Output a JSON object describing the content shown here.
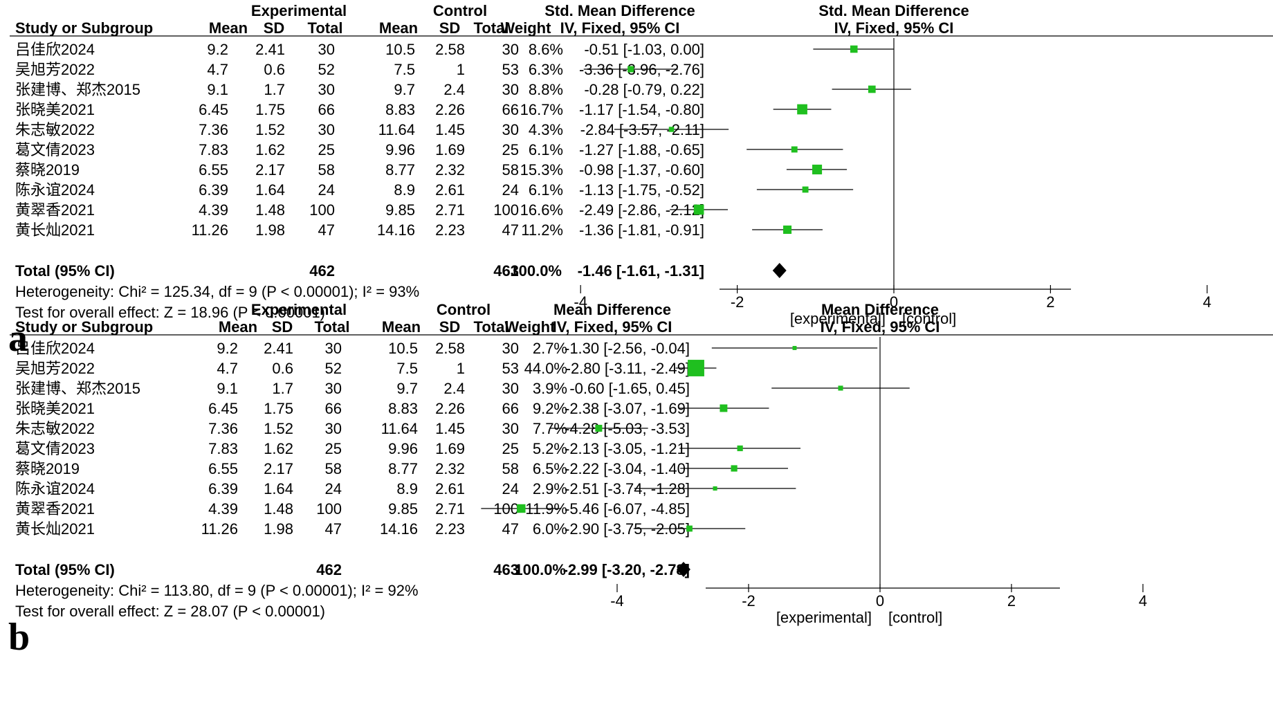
{
  "chart_data": [
    {
      "type": "forest",
      "panel_label": "a",
      "headers": {
        "group_experimental": "Experimental",
        "group_control": "Control",
        "effect_col_top": "Std. Mean Difference",
        "effect_col_bottom": "IV, Fixed, 95% CI",
        "plot_title_top": "Std. Mean Difference",
        "plot_title_bottom": "IV, Fixed, 95% CI",
        "study": "Study or Subgroup",
        "mean_e": "Mean",
        "sd_e": "SD",
        "total_e": "Total",
        "mean_c": "Mean",
        "sd_c": "SD",
        "total_c": "Total",
        "weight": "Weight"
      },
      "studies": [
        {
          "name": "吕佳欣2024",
          "mean_e": "9.2",
          "sd_e": "2.41",
          "n_e": "30",
          "mean_c": "10.5",
          "sd_c": "2.58",
          "n_c": "30",
          "weight": "8.6%",
          "ci_text": "-0.51 [-1.03, 0.00]",
          "est": -0.51,
          "lo": -1.03,
          "hi": 0.0,
          "w": 8.6
        },
        {
          "name": "吴旭芳2022",
          "mean_e": "4.7",
          "sd_e": "0.6",
          "n_e": "52",
          "mean_c": "7.5",
          "sd_c": "1",
          "n_c": "53",
          "weight": "6.3%",
          "ci_text": "-3.36 [-3.96, -2.76]",
          "est": -3.36,
          "lo": -3.96,
          "hi": -2.76,
          "w": 6.3
        },
        {
          "name": "张建博、郑杰2015",
          "mean_e": "9.1",
          "sd_e": "1.7",
          "n_e": "30",
          "mean_c": "9.7",
          "sd_c": "2.4",
          "n_c": "30",
          "weight": "8.8%",
          "ci_text": "-0.28 [-0.79, 0.22]",
          "est": -0.28,
          "lo": -0.79,
          "hi": 0.22,
          "w": 8.8
        },
        {
          "name": "张晓美2021",
          "mean_e": "6.45",
          "sd_e": "1.75",
          "n_e": "66",
          "mean_c": "8.83",
          "sd_c": "2.26",
          "n_c": "66",
          "weight": "16.7%",
          "ci_text": "-1.17 [-1.54, -0.80]",
          "est": -1.17,
          "lo": -1.54,
          "hi": -0.8,
          "w": 16.7
        },
        {
          "name": "朱志敏2022",
          "mean_e": "7.36",
          "sd_e": "1.52",
          "n_e": "30",
          "mean_c": "11.64",
          "sd_c": "1.45",
          "n_c": "30",
          "weight": "4.3%",
          "ci_text": "-2.84 [-3.57, -2.11]",
          "est": -2.84,
          "lo": -3.57,
          "hi": -2.11,
          "w": 4.3
        },
        {
          "name": "葛文倩2023",
          "mean_e": "7.83",
          "sd_e": "1.62",
          "n_e": "25",
          "mean_c": "9.96",
          "sd_c": "1.69",
          "n_c": "25",
          "weight": "6.1%",
          "ci_text": "-1.27 [-1.88, -0.65]",
          "est": -1.27,
          "lo": -1.88,
          "hi": -0.65,
          "w": 6.1
        },
        {
          "name": "蔡晓2019",
          "mean_e": "6.55",
          "sd_e": "2.17",
          "n_e": "58",
          "mean_c": "8.77",
          "sd_c": "2.32",
          "n_c": "58",
          "weight": "15.3%",
          "ci_text": "-0.98 [-1.37, -0.60]",
          "est": -0.98,
          "lo": -1.37,
          "hi": -0.6,
          "w": 15.3
        },
        {
          "name": "陈永谊2024",
          "mean_e": "6.39",
          "sd_e": "1.64",
          "n_e": "24",
          "mean_c": "8.9",
          "sd_c": "2.61",
          "n_c": "24",
          "weight": "6.1%",
          "ci_text": "-1.13 [-1.75, -0.52]",
          "est": -1.13,
          "lo": -1.75,
          "hi": -0.52,
          "w": 6.1
        },
        {
          "name": "黄翠香2021",
          "mean_e": "4.39",
          "sd_e": "1.48",
          "n_e": "100",
          "mean_c": "9.85",
          "sd_c": "2.71",
          "n_c": "100",
          "weight": "16.6%",
          "ci_text": "-2.49 [-2.86, -2.12]",
          "est": -2.49,
          "lo": -2.86,
          "hi": -2.12,
          "w": 16.6
        },
        {
          "name": "黄长灿2021",
          "mean_e": "11.26",
          "sd_e": "1.98",
          "n_e": "47",
          "mean_c": "14.16",
          "sd_c": "2.23",
          "n_c": "47",
          "weight": "11.2%",
          "ci_text": "-1.36 [-1.81, -0.91]",
          "est": -1.36,
          "lo": -1.81,
          "hi": -0.91,
          "w": 11.2
        }
      ],
      "total": {
        "label": "Total (95% CI)",
        "n_e": "462",
        "n_c": "463",
        "weight": "100.0%",
        "ci_text": "-1.46 [-1.61, -1.31]",
        "est": -1.46,
        "lo": -1.61,
        "hi": -1.31
      },
      "heterogeneity": "Heterogeneity: Chi² = 125.34, df = 9 (P < 0.00001); I² = 93%",
      "overall_effect": "Test for overall effect: Z = 18.96 (P < 0.00001)",
      "xlim": [
        -4.5,
        4.5
      ],
      "ticks": [
        -4,
        -2,
        0,
        2,
        4
      ],
      "tick_labels": [
        "-4",
        "-2",
        "0",
        "2",
        "4"
      ],
      "favours_left": "[experimental]",
      "favours_right": "[control]",
      "colors": {
        "marker": "#1fbf1f",
        "diamond": "#000000"
      }
    },
    {
      "type": "forest",
      "panel_label": "b",
      "headers": {
        "group_experimental": "Experimental",
        "group_control": "Control",
        "effect_col_top": "Mean Difference",
        "effect_col_bottom": "IV, Fixed, 95% CI",
        "plot_title_top": "Mean Difference",
        "plot_title_bottom": "IV, Fixed, 95% CI",
        "study": "Study or Subgroup",
        "mean_e": "Mean",
        "sd_e": "SD",
        "total_e": "Total",
        "mean_c": "Mean",
        "sd_c": "SD",
        "total_c": "Total",
        "weight": "Weight"
      },
      "studies": [
        {
          "name": "吕佳欣2024",
          "mean_e": "9.2",
          "sd_e": "2.41",
          "n_e": "30",
          "mean_c": "10.5",
          "sd_c": "2.58",
          "n_c": "30",
          "weight": "2.7%",
          "ci_text": "-1.30 [-2.56, -0.04]",
          "est": -1.3,
          "lo": -2.56,
          "hi": -0.04,
          "w": 2.7
        },
        {
          "name": "吴旭芳2022",
          "mean_e": "4.7",
          "sd_e": "0.6",
          "n_e": "52",
          "mean_c": "7.5",
          "sd_c": "1",
          "n_c": "53",
          "weight": "44.0%",
          "ci_text": "-2.80 [-3.11, -2.49]",
          "est": -2.8,
          "lo": -3.11,
          "hi": -2.49,
          "w": 44.0
        },
        {
          "name": "张建博、郑杰2015",
          "mean_e": "9.1",
          "sd_e": "1.7",
          "n_e": "30",
          "mean_c": "9.7",
          "sd_c": "2.4",
          "n_c": "30",
          "weight": "3.9%",
          "ci_text": "-0.60 [-1.65, 0.45]",
          "est": -0.6,
          "lo": -1.65,
          "hi": 0.45,
          "w": 3.9
        },
        {
          "name": "张晓美2021",
          "mean_e": "6.45",
          "sd_e": "1.75",
          "n_e": "66",
          "mean_c": "8.83",
          "sd_c": "2.26",
          "n_c": "66",
          "weight": "9.2%",
          "ci_text": "-2.38 [-3.07, -1.69]",
          "est": -2.38,
          "lo": -3.07,
          "hi": -1.69,
          "w": 9.2
        },
        {
          "name": "朱志敏2022",
          "mean_e": "7.36",
          "sd_e": "1.52",
          "n_e": "30",
          "mean_c": "11.64",
          "sd_c": "1.45",
          "n_c": "30",
          "weight": "7.7%",
          "ci_text": "-4.28 [-5.03, -3.53]",
          "est": -4.28,
          "lo": -5.03,
          "hi": -3.53,
          "w": 7.7
        },
        {
          "name": "葛文倩2023",
          "mean_e": "7.83",
          "sd_e": "1.62",
          "n_e": "25",
          "mean_c": "9.96",
          "sd_c": "1.69",
          "n_c": "25",
          "weight": "5.2%",
          "ci_text": "-2.13 [-3.05, -1.21]",
          "est": -2.13,
          "lo": -3.05,
          "hi": -1.21,
          "w": 5.2
        },
        {
          "name": "蔡晓2019",
          "mean_e": "6.55",
          "sd_e": "2.17",
          "n_e": "58",
          "mean_c": "8.77",
          "sd_c": "2.32",
          "n_c": "58",
          "weight": "6.5%",
          "ci_text": "-2.22 [-3.04, -1.40]",
          "est": -2.22,
          "lo": -3.04,
          "hi": -1.4,
          "w": 6.5
        },
        {
          "name": "陈永谊2024",
          "mean_e": "6.39",
          "sd_e": "1.64",
          "n_e": "24",
          "mean_c": "8.9",
          "sd_c": "2.61",
          "n_c": "24",
          "weight": "2.9%",
          "ci_text": "-2.51 [-3.74, -1.28]",
          "est": -2.51,
          "lo": -3.74,
          "hi": -1.28,
          "w": 2.9
        },
        {
          "name": "黄翠香2021",
          "mean_e": "4.39",
          "sd_e": "1.48",
          "n_e": "100",
          "mean_c": "9.85",
          "sd_c": "2.71",
          "n_c": "100",
          "weight": "11.9%",
          "ci_text": "-5.46 [-6.07, -4.85]",
          "est": -5.46,
          "lo": -6.07,
          "hi": -4.85,
          "w": 11.9
        },
        {
          "name": "黄长灿2021",
          "mean_e": "11.26",
          "sd_e": "1.98",
          "n_e": "47",
          "mean_c": "14.16",
          "sd_c": "2.23",
          "n_c": "47",
          "weight": "6.0%",
          "ci_text": "-2.90 [-3.75, -2.05]",
          "est": -2.9,
          "lo": -3.75,
          "hi": -2.05,
          "w": 6.0
        }
      ],
      "total": {
        "label": "Total (95% CI)",
        "n_e": "462",
        "n_c": "463",
        "weight": "100.0%",
        "ci_text": "-2.99 [-3.20, -2.78]",
        "est": -2.99,
        "lo": -3.2,
        "hi": -2.78
      },
      "heterogeneity": "Heterogeneity: Chi² = 113.80, df = 9 (P < 0.00001); I² = 92%",
      "overall_effect": "Test for overall effect: Z = 28.07 (P < 0.00001)",
      "xlim": [
        -6.2,
        6.4
      ],
      "ticks": [
        -4,
        -2,
        0,
        2,
        4
      ],
      "tick_labels": [
        "-4",
        "-2",
        "0",
        "2",
        "4"
      ],
      "favours_left": "[experimental]",
      "favours_right": "[control]",
      "colors": {
        "marker": "#1fbf1f",
        "diamond": "#000000"
      }
    }
  ]
}
